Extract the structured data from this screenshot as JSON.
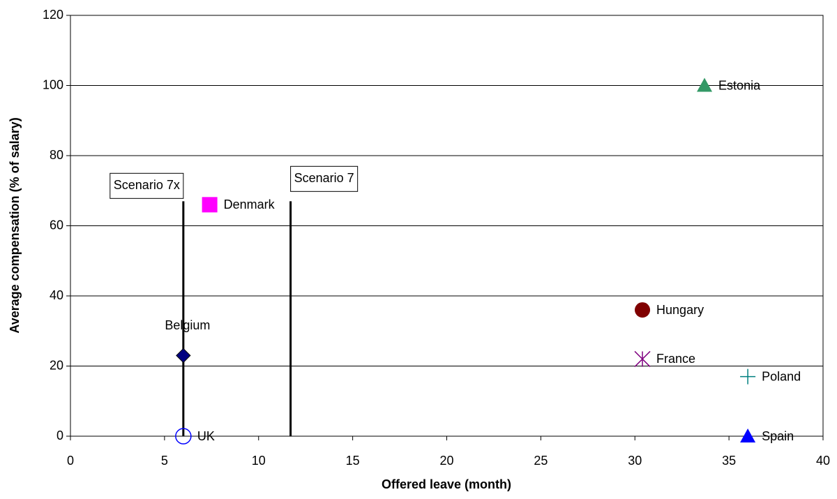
{
  "chart_data": {
    "type": "scatter",
    "x_label": "Offered leave (month)",
    "y_label": "Average compensation (% of salary)",
    "xlim": [
      0,
      40
    ],
    "xticks": [
      0,
      5,
      10,
      15,
      20,
      25,
      30,
      35,
      40
    ],
    "ylim": [
      0,
      120
    ],
    "yticks": [
      0,
      20,
      40,
      60,
      80,
      100,
      120
    ],
    "grid": "horizontal",
    "series": [
      {
        "name": "UK",
        "color": "#0000ff",
        "marker": "circle-open",
        "x": [
          6
        ],
        "values": [
          0
        ]
      },
      {
        "name": "Belgium",
        "color": "#000080",
        "marker": "diamond",
        "x": [
          6
        ],
        "values": [
          23
        ],
        "label_position": "top"
      },
      {
        "name": "Denmark",
        "color": "#ff00ff",
        "marker": "square",
        "x": [
          7.4
        ],
        "values": [
          66
        ]
      },
      {
        "name": "Hungary",
        "color": "#800000",
        "marker": "circle",
        "x": [
          30.4
        ],
        "values": [
          36
        ]
      },
      {
        "name": "France",
        "color": "#800080",
        "marker": "star",
        "x": [
          30.4
        ],
        "values": [
          22
        ]
      },
      {
        "name": "Estonia",
        "color": "#339966",
        "marker": "triangle",
        "x": [
          33.7
        ],
        "values": [
          100
        ]
      },
      {
        "name": "Poland",
        "color": "#008080",
        "marker": "plus",
        "x": [
          36
        ],
        "values": [
          17
        ]
      },
      {
        "name": "Spain",
        "color": "#0000ff",
        "marker": "triangle",
        "x": [
          36
        ],
        "values": [
          0
        ]
      }
    ],
    "reference_lines": [
      {
        "label": "Scenario 7x",
        "x": 6,
        "y": [
          0,
          67
        ]
      },
      {
        "label": "Scenario 7",
        "x": 11.7,
        "y": [
          0,
          67
        ]
      }
    ]
  }
}
